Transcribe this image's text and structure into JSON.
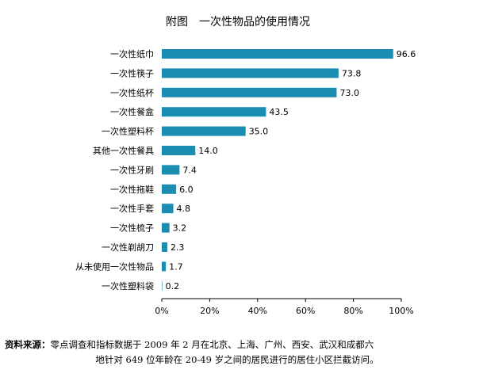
{
  "chart_data": {
    "type": "bar",
    "orientation": "horizontal",
    "title": "附图　一次性物品的使用情况",
    "categories": [
      "一次性纸巾",
      "一次性筷子",
      "一次性纸杯",
      "一次性餐盒",
      "一次性塑料杯",
      "其他一次性餐具",
      "一次性牙刷",
      "一次性拖鞋",
      "一次性手套",
      "一次性梳子",
      "一次性剃胡刀",
      "从未使用一次性物品",
      "一次性塑料袋"
    ],
    "values": [
      96.6,
      73.8,
      73.0,
      43.5,
      35.0,
      14.0,
      7.4,
      6.0,
      4.8,
      3.2,
      2.3,
      1.7,
      0.2
    ],
    "value_labels": [
      "96.6",
      "73.8",
      "73.0",
      "43.5",
      "35.0",
      "14.0",
      "7.4",
      "6.0",
      "4.8",
      "3.2",
      "2.3",
      "1.7",
      "0.2"
    ],
    "xlim": [
      0,
      100
    ],
    "x_ticks": [
      "0%",
      "20%",
      "40%",
      "60%",
      "80%",
      "100%"
    ],
    "xlabel": "",
    "ylabel": "",
    "grid": false,
    "bar_color": "#1b8db0"
  },
  "source": {
    "label": "资料来源：",
    "line1": "零点调查和指标数据于 2009 年 2 月在北京、上海、广州、西安、武汉和成都六",
    "line2": "地针对 649 位年龄在 20-49 岁之间的居民进行的居住小区拦截访问。"
  }
}
